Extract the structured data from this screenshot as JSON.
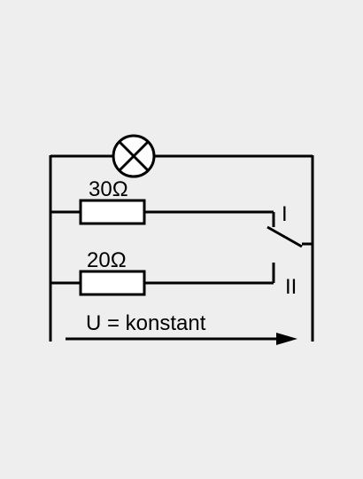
{
  "diagram": {
    "lamp_symbol": "lamp-icon",
    "resistor_top_label": "30Ω",
    "resistor_bottom_label": "20Ω",
    "switch_position_1": "I",
    "switch_position_2": "II",
    "voltage_label": "U = konstant",
    "colors": {
      "background": "#eeeeee",
      "line": "#000000",
      "component_fill": "#ffffff"
    }
  }
}
